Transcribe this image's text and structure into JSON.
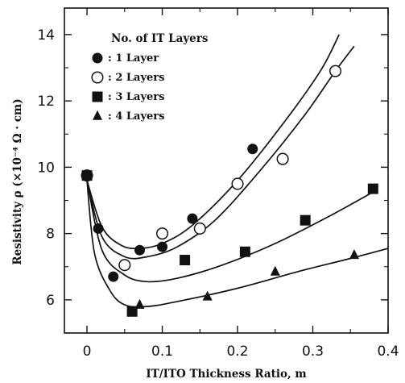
{
  "chart_data": {
    "type": "scatter",
    "xlabel": "IT/ITO Thickness Ratio, m",
    "ylabel": "Resistivity ρ (×10⁻⁴ Ω · cm)",
    "xlim": [
      -0.03,
      0.4
    ],
    "ylim": [
      5,
      14.8
    ],
    "x_ticks": [
      0,
      0.1,
      0.2,
      0.3,
      0.4
    ],
    "x_tick_labels": [
      "0",
      "0.1",
      "0.2",
      "0.3",
      "0.4"
    ],
    "y_ticks": [
      6,
      8,
      10,
      12,
      14
    ],
    "y_tick_labels": [
      "6",
      "8",
      "10",
      "12",
      "14"
    ],
    "grid": false,
    "legend": {
      "title": "No. of IT Layers",
      "placement": "top-left"
    },
    "series": [
      {
        "name": ": 1 Layer",
        "marker": "filled-circle",
        "points": [
          [
            0,
            9.75
          ],
          [
            0.015,
            8.15
          ],
          [
            0.035,
            6.7
          ],
          [
            0.07,
            7.5
          ],
          [
            0.1,
            7.6
          ],
          [
            0.14,
            8.45
          ],
          [
            0.22,
            10.55
          ]
        ],
        "fit": [
          [
            0,
            9.6
          ],
          [
            0.02,
            8.2
          ],
          [
            0.045,
            7.65
          ],
          [
            0.07,
            7.55
          ],
          [
            0.1,
            7.7
          ],
          [
            0.14,
            8.25
          ],
          [
            0.2,
            9.6
          ],
          [
            0.26,
            11.3
          ],
          [
            0.31,
            12.9
          ],
          [
            0.335,
            14.0
          ]
        ]
      },
      {
        "name": ": 2 Layers",
        "marker": "open-circle",
        "points": [
          [
            0,
            9.75
          ],
          [
            0.05,
            7.05
          ],
          [
            0.1,
            8.0
          ],
          [
            0.15,
            8.15
          ],
          [
            0.2,
            9.5
          ],
          [
            0.26,
            10.25
          ],
          [
            0.33,
            12.9
          ]
        ],
        "fit": [
          [
            0,
            9.6
          ],
          [
            0.02,
            7.9
          ],
          [
            0.05,
            7.3
          ],
          [
            0.08,
            7.3
          ],
          [
            0.12,
            7.6
          ],
          [
            0.17,
            8.4
          ],
          [
            0.23,
            9.9
          ],
          [
            0.29,
            11.6
          ],
          [
            0.33,
            12.9
          ],
          [
            0.355,
            13.65
          ]
        ]
      },
      {
        "name": ": 3 Layers",
        "marker": "filled-square",
        "points": [
          [
            0,
            9.75
          ],
          [
            0.06,
            5.65
          ],
          [
            0.13,
            7.2
          ],
          [
            0.21,
            7.45
          ],
          [
            0.29,
            8.4
          ],
          [
            0.38,
            9.35
          ]
        ],
        "fit": [
          [
            0,
            9.6
          ],
          [
            0.02,
            7.5
          ],
          [
            0.05,
            6.75
          ],
          [
            0.08,
            6.55
          ],
          [
            0.12,
            6.65
          ],
          [
            0.18,
            7.05
          ],
          [
            0.25,
            7.7
          ],
          [
            0.32,
            8.5
          ],
          [
            0.38,
            9.25
          ]
        ]
      },
      {
        "name": ": 4 Layers",
        "marker": "filled-triangle",
        "points": [
          [
            0.07,
            5.85
          ],
          [
            0.16,
            6.1
          ],
          [
            0.25,
            6.85
          ],
          [
            0.355,
            7.35
          ]
        ],
        "fit": [
          [
            0,
            9.6
          ],
          [
            0.01,
            7.4
          ],
          [
            0.03,
            6.3
          ],
          [
            0.05,
            5.85
          ],
          [
            0.08,
            5.8
          ],
          [
            0.12,
            5.95
          ],
          [
            0.2,
            6.35
          ],
          [
            0.28,
            6.85
          ],
          [
            0.35,
            7.25
          ],
          [
            0.4,
            7.55
          ]
        ]
      }
    ]
  }
}
